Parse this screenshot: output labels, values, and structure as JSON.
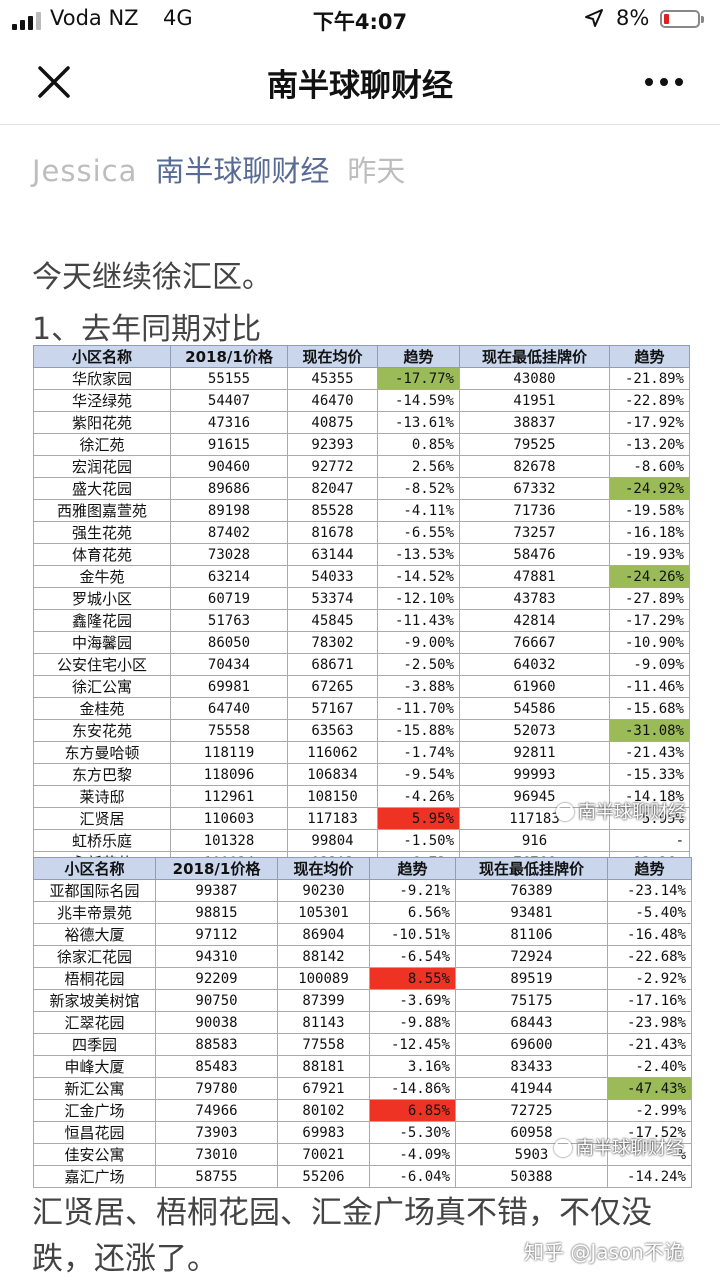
{
  "status_bar": {
    "carrier": "Voda NZ",
    "network": "4G",
    "time": "下午4:07",
    "battery": "8%"
  },
  "nav": {
    "title": "南半球聊财经"
  },
  "meta": {
    "author": "Jessica",
    "account": "南半球聊财经",
    "date": "昨天"
  },
  "article": {
    "intro": "今天继续徐汇区。",
    "heading": "1、去年同期对比",
    "outro": "汇贤居、梧桐花园、汇金广场真不错，不仅没跌，还涨了。"
  },
  "table_headers": [
    "小区名称",
    "2018/1价格",
    "现在均价",
    "趋势",
    "现在最低挂牌价",
    "趋势"
  ],
  "table1": [
    [
      "华欣家园",
      "55155",
      "45355",
      "-17.77%",
      "43080",
      "-21.89%"
    ],
    [
      "华泾绿苑",
      "54407",
      "46470",
      "-14.59%",
      "41951",
      "-22.89%"
    ],
    [
      "紫阳花苑",
      "47316",
      "40875",
      "-13.61%",
      "38837",
      "-17.92%"
    ],
    [
      "徐汇苑",
      "91615",
      "92393",
      "0.85%",
      "79525",
      "-13.20%"
    ],
    [
      "宏润花园",
      "90460",
      "92772",
      "2.56%",
      "82678",
      "-8.60%"
    ],
    [
      "盛大花园",
      "89686",
      "82047",
      "-8.52%",
      "67332",
      "-24.92%"
    ],
    [
      "西雅图嘉萱苑",
      "89198",
      "85528",
      "-4.11%",
      "71736",
      "-19.58%"
    ],
    [
      "强生花苑",
      "87402",
      "81678",
      "-6.55%",
      "73257",
      "-16.18%"
    ],
    [
      "体育花苑",
      "73028",
      "63144",
      "-13.53%",
      "58476",
      "-19.93%"
    ],
    [
      "金牛苑",
      "63214",
      "54033",
      "-14.52%",
      "47881",
      "-24.26%"
    ],
    [
      "罗城小区",
      "60719",
      "53374",
      "-12.10%",
      "43783",
      "-27.89%"
    ],
    [
      "鑫隆花园",
      "51763",
      "45845",
      "-11.43%",
      "42814",
      "-17.29%"
    ],
    [
      "中海馨园",
      "86050",
      "78302",
      "-9.00%",
      "76667",
      "-10.90%"
    ],
    [
      "公安住宅小区",
      "70434",
      "68671",
      "-2.50%",
      "64032",
      "-9.09%"
    ],
    [
      "徐汇公寓",
      "69981",
      "67265",
      "-3.88%",
      "61960",
      "-11.46%"
    ],
    [
      "金桂苑",
      "64740",
      "57167",
      "-11.70%",
      "54586",
      "-15.68%"
    ],
    [
      "东安花苑",
      "75558",
      "63563",
      "-15.88%",
      "52073",
      "-31.08%"
    ],
    [
      "东方曼哈顿",
      "118119",
      "116062",
      "-1.74%",
      "92811",
      "-21.43%"
    ],
    [
      "东方巴黎",
      "118096",
      "106834",
      "-9.54%",
      "99993",
      "-15.33%"
    ],
    [
      "莱诗邸",
      "112961",
      "108150",
      "-4.26%",
      "96945",
      "-14.18%"
    ],
    [
      "汇贤居",
      "110603",
      "117183",
      "5.95%",
      "117183",
      "5.95%"
    ],
    [
      "虹桥乐庭",
      "101328",
      "99804",
      "-1.50%",
      "916",
      "-"
    ],
    [
      "永新花苑",
      "100034",
      "93303",
      "-6.73%",
      "76766",
      "-23.26%"
    ]
  ],
  "table2": [
    [
      "亚都国际名园",
      "99387",
      "90230",
      "-9.21%",
      "76389",
      "-23.14%"
    ],
    [
      "兆丰帝景苑",
      "98815",
      "105301",
      "6.56%",
      "93481",
      "-5.40%"
    ],
    [
      "裕德大厦",
      "97112",
      "86904",
      "-10.51%",
      "81106",
      "-16.48%"
    ],
    [
      "徐家汇花园",
      "94310",
      "88142",
      "-6.54%",
      "72924",
      "-22.68%"
    ],
    [
      "梧桐花园",
      "92209",
      "100089",
      "8.55%",
      "89519",
      "-2.92%"
    ],
    [
      "新家坡美树馆",
      "90750",
      "87399",
      "-3.69%",
      "75175",
      "-17.16%"
    ],
    [
      "汇翠花园",
      "90038",
      "81143",
      "-9.88%",
      "68443",
      "-23.98%"
    ],
    [
      "四季园",
      "88583",
      "77558",
      "-12.45%",
      "69600",
      "-21.43%"
    ],
    [
      "申峰大厦",
      "85483",
      "88181",
      "3.16%",
      "83433",
      "-2.40%"
    ],
    [
      "新汇公寓",
      "79780",
      "67921",
      "-14.86%",
      "41944",
      "-47.43%"
    ],
    [
      "汇金广场",
      "74966",
      "80102",
      "6.85%",
      "72725",
      "-2.99%"
    ],
    [
      "恒昌花园",
      "73903",
      "69983",
      "-5.30%",
      "60958",
      "-17.52%"
    ],
    [
      "佳安公寓",
      "73010",
      "70021",
      "-4.09%",
      "5903",
      "%"
    ],
    [
      "嘉汇广场",
      "58755",
      "55206",
      "-6.04%",
      "50388",
      "-14.24%"
    ]
  ],
  "highlights": {
    "green": "#9bbb59",
    "red": "#ee3224",
    "table1": {
      "0-3": "green",
      "5-5": "green",
      "9-5": "green",
      "16-5": "green",
      "20-3": "red"
    },
    "table2": {
      "4-3": "red",
      "9-5": "green",
      "10-3": "red"
    }
  },
  "watermarks": {
    "image": "南半球聊财经",
    "footer": "知乎 @Jason不诡"
  }
}
